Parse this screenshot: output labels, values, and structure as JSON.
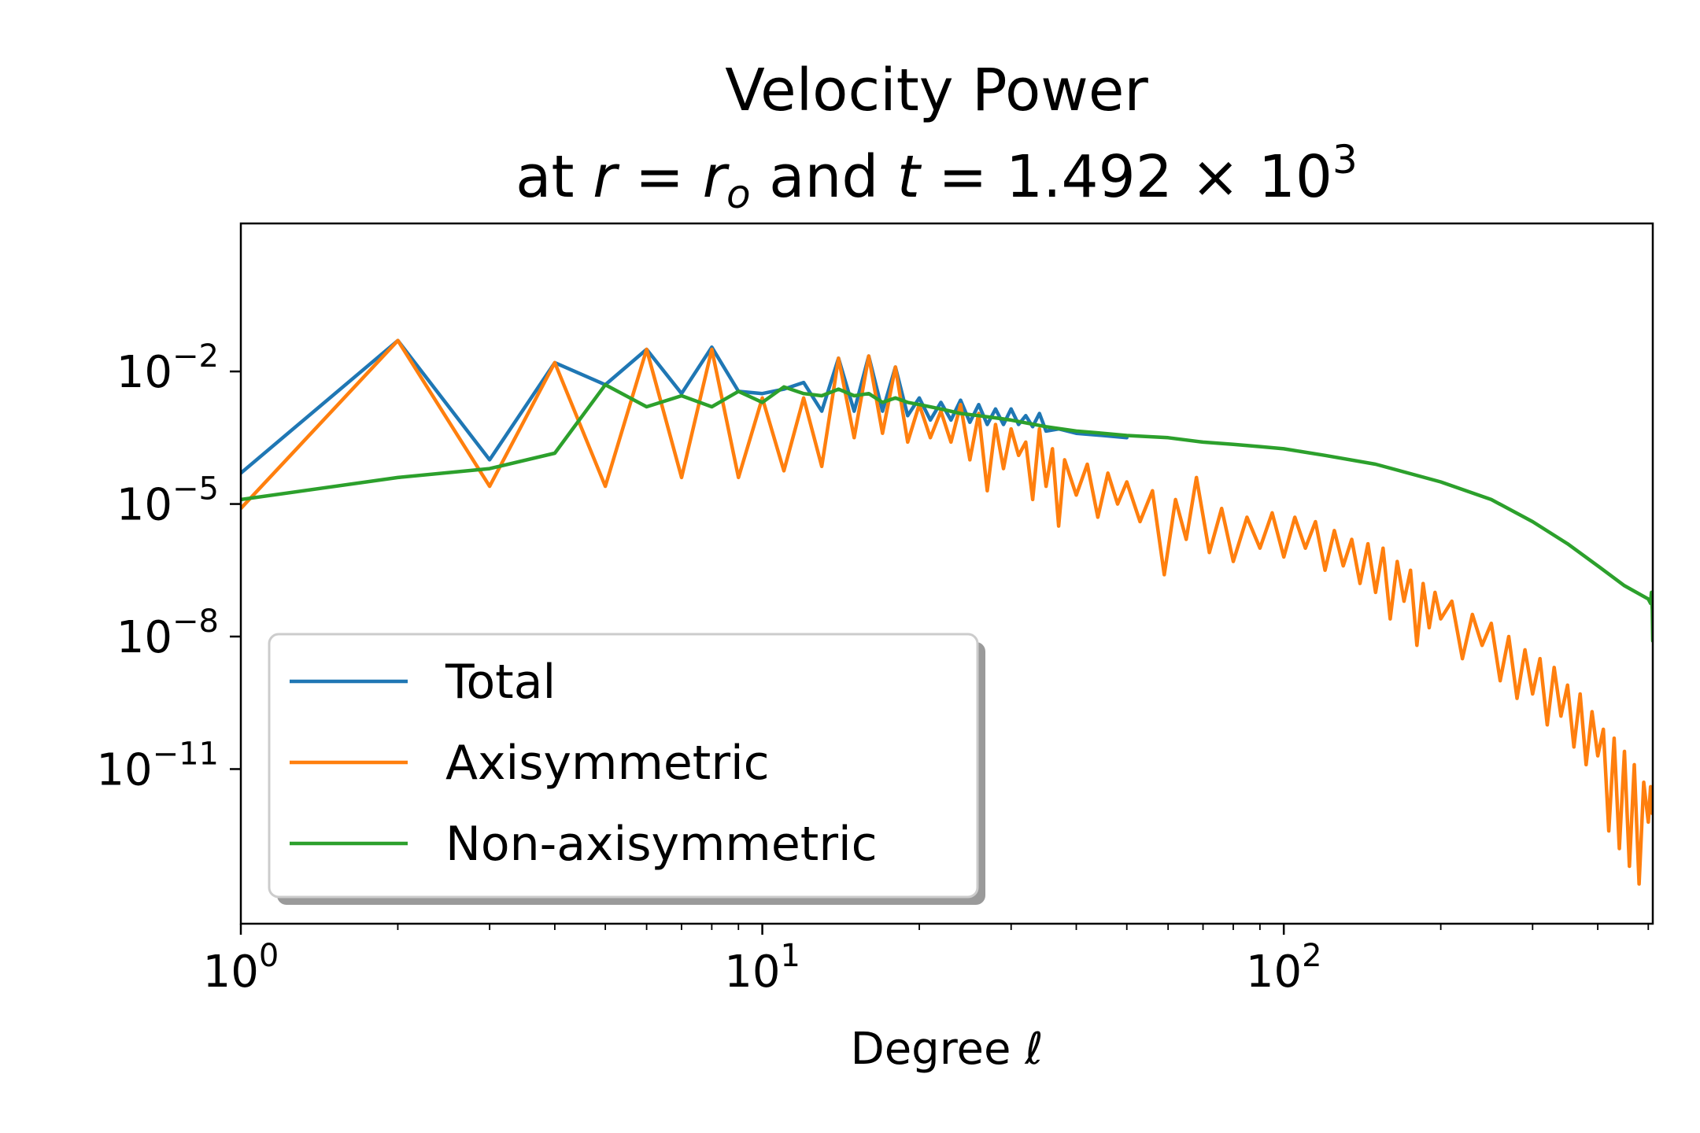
{
  "chart_data": {
    "type": "line",
    "title": "Velocity Power",
    "subtitle": {
      "prefix": "at ",
      "r_var": "r",
      "eq1": " = ",
      "r_o_var": "r",
      "r_o_sub": "o",
      "mid": " and ",
      "t_var": "t",
      "eq2": " = ",
      "value": "1.492 × 10",
      "exponent": "3"
    },
    "xlabel": "Degree ℓ",
    "ylabel": "",
    "x_scale": "log",
    "y_scale": "log",
    "xlim": [
      1,
      510
    ],
    "ylim_log10": [
      -14.5,
      1.35
    ],
    "x_ticks": [
      {
        "base": "10",
        "exp": "0",
        "value": 1
      },
      {
        "base": "10",
        "exp": "1",
        "value": 10
      },
      {
        "base": "10",
        "exp": "2",
        "value": 100
      }
    ],
    "y_ticks": [
      {
        "base": "10",
        "exp": "−2",
        "value_log10": -2
      },
      {
        "base": "10",
        "exp": "−5",
        "value_log10": -5
      },
      {
        "base": "10",
        "exp": "−8",
        "value_log10": -8
      },
      {
        "base": "10",
        "exp": "−11",
        "value_log10": -11
      }
    ],
    "grid": false,
    "legend_position": "lower-left",
    "series": [
      {
        "name": "Total",
        "color": "#1f77b4",
        "points": [
          [
            1,
            -4.3
          ],
          [
            2,
            -1.3
          ],
          [
            3,
            -4.0
          ],
          [
            4,
            -1.8
          ],
          [
            5,
            -2.3
          ],
          [
            6,
            -1.5
          ],
          [
            7,
            -2.5
          ],
          [
            8,
            -1.45
          ],
          [
            9,
            -2.45
          ],
          [
            10,
            -2.5
          ],
          [
            11,
            -2.4
          ],
          [
            12,
            -2.25
          ],
          [
            13,
            -2.9
          ],
          [
            14,
            -1.7
          ],
          [
            15,
            -2.9
          ],
          [
            16,
            -1.65
          ],
          [
            17,
            -2.9
          ],
          [
            18,
            -1.9
          ],
          [
            19,
            -3.0
          ],
          [
            20,
            -2.6
          ],
          [
            21,
            -3.1
          ],
          [
            22,
            -2.7
          ],
          [
            23,
            -3.1
          ],
          [
            24,
            -2.65
          ],
          [
            25,
            -3.15
          ],
          [
            26,
            -2.75
          ],
          [
            27,
            -3.2
          ],
          [
            28,
            -2.85
          ],
          [
            29,
            -3.2
          ],
          [
            30,
            -2.85
          ],
          [
            31,
            -3.2
          ],
          [
            32,
            -3.0
          ],
          [
            33,
            -3.25
          ],
          [
            34,
            -2.95
          ],
          [
            35,
            -3.35
          ],
          [
            37,
            -3.3
          ],
          [
            40,
            -3.4
          ],
          [
            45,
            -3.45
          ],
          [
            50,
            -3.5
          ]
        ]
      },
      {
        "name": "Axisymmetric",
        "color": "#ff7f0e",
        "points": [
          [
            1,
            -5.1
          ],
          [
            2,
            -1.3
          ],
          [
            3,
            -4.6
          ],
          [
            4,
            -1.8
          ],
          [
            5,
            -4.6
          ],
          [
            6,
            -1.5
          ],
          [
            7,
            -4.4
          ],
          [
            8,
            -1.5
          ],
          [
            9,
            -4.4
          ],
          [
            10,
            -2.6
          ],
          [
            11,
            -4.25
          ],
          [
            12,
            -2.6
          ],
          [
            13,
            -4.15
          ],
          [
            14,
            -1.7
          ],
          [
            15,
            -3.5
          ],
          [
            16,
            -1.65
          ],
          [
            17,
            -3.4
          ],
          [
            18,
            -1.9
          ],
          [
            19,
            -3.6
          ],
          [
            20,
            -2.75
          ],
          [
            21,
            -3.5
          ],
          [
            22,
            -2.9
          ],
          [
            23,
            -3.6
          ],
          [
            24,
            -2.75
          ],
          [
            25,
            -4.0
          ],
          [
            26,
            -2.95
          ],
          [
            27,
            -4.7
          ],
          [
            28,
            -3.2
          ],
          [
            29,
            -4.2
          ],
          [
            30,
            -3.3
          ],
          [
            31,
            -3.9
          ],
          [
            32,
            -3.6
          ],
          [
            33,
            -4.9
          ],
          [
            34,
            -3.3
          ],
          [
            35,
            -4.6
          ],
          [
            36,
            -3.75
          ],
          [
            37,
            -5.5
          ],
          [
            38,
            -4.0
          ],
          [
            40,
            -4.8
          ],
          [
            42,
            -4.1
          ],
          [
            44,
            -5.3
          ],
          [
            46,
            -4.3
          ],
          [
            48,
            -5.0
          ],
          [
            50,
            -4.5
          ],
          [
            53,
            -5.4
          ],
          [
            56,
            -4.7
          ],
          [
            59,
            -6.6
          ],
          [
            62,
            -4.9
          ],
          [
            65,
            -5.8
          ],
          [
            68,
            -4.4
          ],
          [
            72,
            -6.1
          ],
          [
            76,
            -5.1
          ],
          [
            80,
            -6.3
          ],
          [
            85,
            -5.3
          ],
          [
            90,
            -6.0
          ],
          [
            95,
            -5.2
          ],
          [
            100,
            -6.2
          ],
          [
            105,
            -5.3
          ],
          [
            110,
            -6.0
          ],
          [
            115,
            -5.4
          ],
          [
            120,
            -6.5
          ],
          [
            125,
            -5.6
          ],
          [
            130,
            -6.4
          ],
          [
            135,
            -5.8
          ],
          [
            140,
            -6.8
          ],
          [
            145,
            -5.9
          ],
          [
            150,
            -7.0
          ],
          [
            155,
            -6.0
          ],
          [
            160,
            -7.6
          ],
          [
            165,
            -6.3
          ],
          [
            170,
            -7.2
          ],
          [
            175,
            -6.5
          ],
          [
            180,
            -8.2
          ],
          [
            185,
            -6.8
          ],
          [
            190,
            -7.8
          ],
          [
            195,
            -7.0
          ],
          [
            200,
            -7.6
          ],
          [
            210,
            -7.2
          ],
          [
            220,
            -8.5
          ],
          [
            230,
            -7.5
          ],
          [
            240,
            -8.2
          ],
          [
            250,
            -7.7
          ],
          [
            260,
            -9.0
          ],
          [
            270,
            -8.0
          ],
          [
            280,
            -9.4
          ],
          [
            290,
            -8.3
          ],
          [
            300,
            -9.3
          ],
          [
            310,
            -8.5
          ],
          [
            320,
            -10.0
          ],
          [
            330,
            -8.7
          ],
          [
            340,
            -9.8
          ],
          [
            350,
            -9.1
          ],
          [
            360,
            -10.5
          ],
          [
            370,
            -9.3
          ],
          [
            380,
            -10.9
          ],
          [
            390,
            -9.7
          ],
          [
            400,
            -10.7
          ],
          [
            410,
            -10.1
          ],
          [
            420,
            -12.4
          ],
          [
            430,
            -10.3
          ],
          [
            440,
            -12.8
          ],
          [
            450,
            -10.6
          ],
          [
            460,
            -13.2
          ],
          [
            470,
            -10.9
          ],
          [
            480,
            -13.6
          ],
          [
            490,
            -11.3
          ],
          [
            500,
            -12.2
          ],
          [
            505,
            -11.4
          ],
          [
            508,
            -12.0
          ]
        ]
      },
      {
        "name": "Non-axisymmetric",
        "color": "#2ca02c",
        "points": [
          [
            1,
            -4.9
          ],
          [
            2,
            -4.4
          ],
          [
            3,
            -4.2
          ],
          [
            4,
            -3.85
          ],
          [
            5,
            -2.3
          ],
          [
            6,
            -2.8
          ],
          [
            7,
            -2.55
          ],
          [
            8,
            -2.8
          ],
          [
            9,
            -2.45
          ],
          [
            10,
            -2.7
          ],
          [
            11,
            -2.35
          ],
          [
            12,
            -2.5
          ],
          [
            13,
            -2.55
          ],
          [
            14,
            -2.4
          ],
          [
            15,
            -2.55
          ],
          [
            16,
            -2.5
          ],
          [
            17,
            -2.7
          ],
          [
            18,
            -2.6
          ],
          [
            19,
            -2.7
          ],
          [
            20,
            -2.75
          ],
          [
            22,
            -2.85
          ],
          [
            24,
            -2.95
          ],
          [
            26,
            -3.0
          ],
          [
            28,
            -3.05
          ],
          [
            30,
            -3.1
          ],
          [
            35,
            -3.25
          ],
          [
            40,
            -3.35
          ],
          [
            45,
            -3.4
          ],
          [
            50,
            -3.45
          ],
          [
            60,
            -3.5
          ],
          [
            70,
            -3.6
          ],
          [
            80,
            -3.65
          ],
          [
            90,
            -3.7
          ],
          [
            100,
            -3.75
          ],
          [
            120,
            -3.9
          ],
          [
            150,
            -4.1
          ],
          [
            200,
            -4.5
          ],
          [
            250,
            -4.9
          ],
          [
            300,
            -5.4
          ],
          [
            350,
            -5.9
          ],
          [
            400,
            -6.4
          ],
          [
            450,
            -6.85
          ],
          [
            500,
            -7.15
          ],
          [
            505,
            -7.25
          ],
          [
            507,
            -7.0
          ],
          [
            509,
            -7.4
          ],
          [
            510,
            -8.1
          ]
        ]
      }
    ]
  }
}
